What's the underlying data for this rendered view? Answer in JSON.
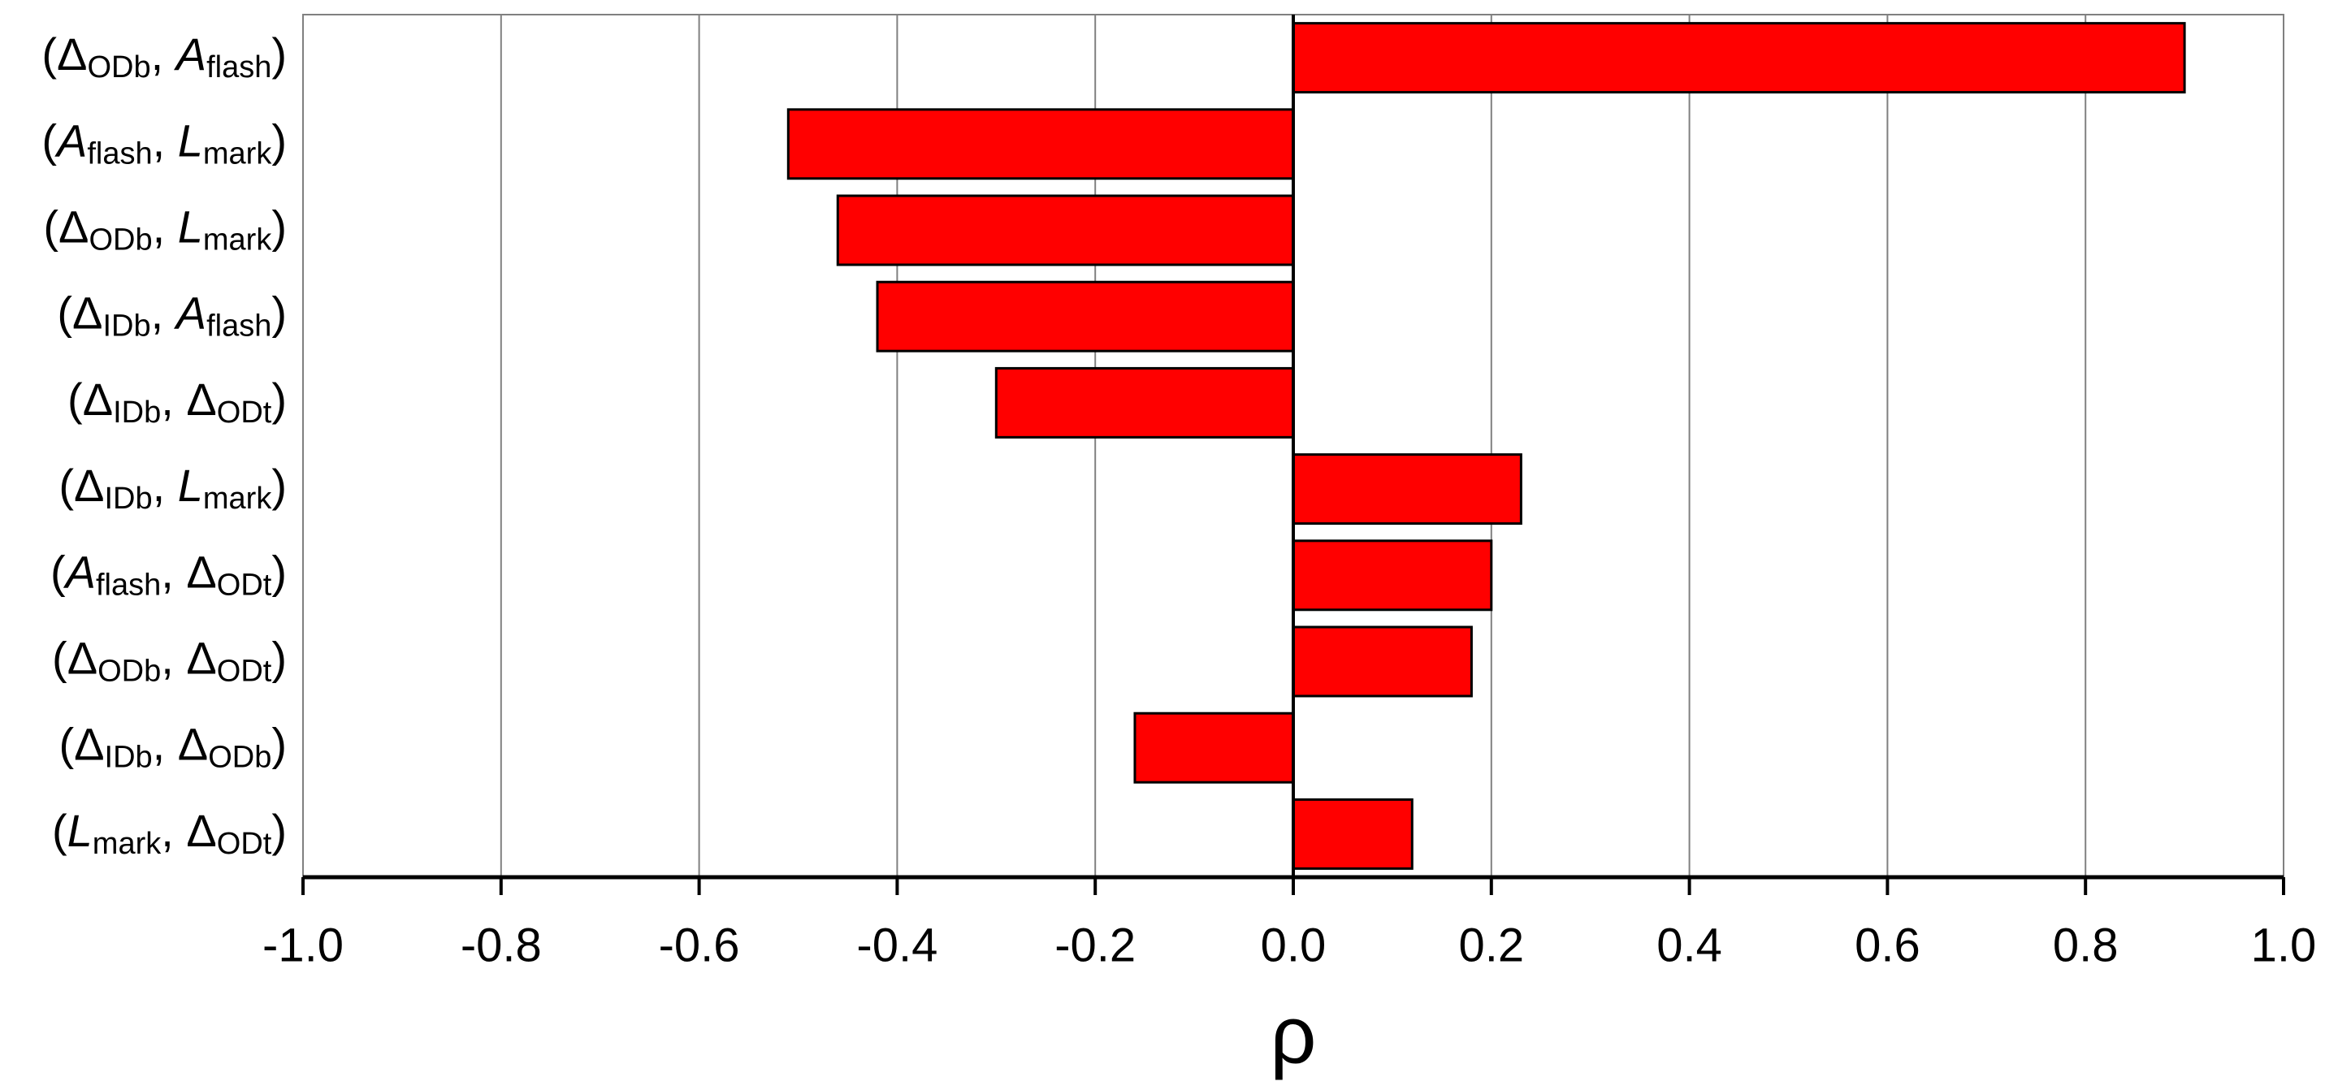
{
  "chart_data": {
    "type": "barh",
    "categories": [
      [
        "(Δ",
        {
          "sub": "ODb"
        },
        ", ",
        {
          "italic": "A"
        },
        {
          "sub": "flash"
        },
        ")"
      ],
      [
        "(",
        {
          "italic": "A"
        },
        {
          "sub": "flash"
        },
        ", ",
        {
          "italic": "L"
        },
        {
          "sub": "mark"
        },
        ")"
      ],
      [
        "(Δ",
        {
          "sub": "ODb"
        },
        ", ",
        {
          "italic": "L"
        },
        {
          "sub": "mark"
        },
        ")"
      ],
      [
        "(Δ",
        {
          "sub": "IDb"
        },
        ", ",
        {
          "italic": "A"
        },
        {
          "sub": "flash"
        },
        ")"
      ],
      [
        "(Δ",
        {
          "sub": "IDb"
        },
        ", Δ",
        {
          "sub": "ODt"
        },
        ")"
      ],
      [
        "(Δ",
        {
          "sub": "IDb"
        },
        ", ",
        {
          "italic": "L"
        },
        {
          "sub": "mark"
        },
        ")"
      ],
      [
        "(",
        {
          "italic": "A"
        },
        {
          "sub": "flash"
        },
        ", Δ",
        {
          "sub": "ODt"
        },
        ")"
      ],
      [
        "(Δ",
        {
          "sub": "ODb"
        },
        ", Δ",
        {
          "sub": "ODt"
        },
        ")"
      ],
      [
        "(Δ",
        {
          "sub": "IDb"
        },
        ", Δ",
        {
          "sub": "ODb"
        },
        ")"
      ],
      [
        "(",
        {
          "italic": "L"
        },
        {
          "sub": "mark"
        },
        ", Δ",
        {
          "sub": "ODt"
        },
        ")"
      ]
    ],
    "values": [
      0.9,
      -0.51,
      -0.46,
      -0.42,
      -0.3,
      0.23,
      0.2,
      0.18,
      -0.16,
      0.12
    ],
    "color": "#ff0000",
    "xlabel": "ρ",
    "xlim": [
      -1,
      1
    ],
    "xticks": [
      {
        "value": -1,
        "label": "-1.0"
      },
      -0.8,
      -0.6,
      -0.4,
      -0.2,
      {
        "value": 0,
        "label": "0.0"
      },
      0.2,
      0.4,
      0.6,
      0.8,
      {
        "value": 1,
        "label": "1.0"
      }
    ],
    "grid": true
  }
}
